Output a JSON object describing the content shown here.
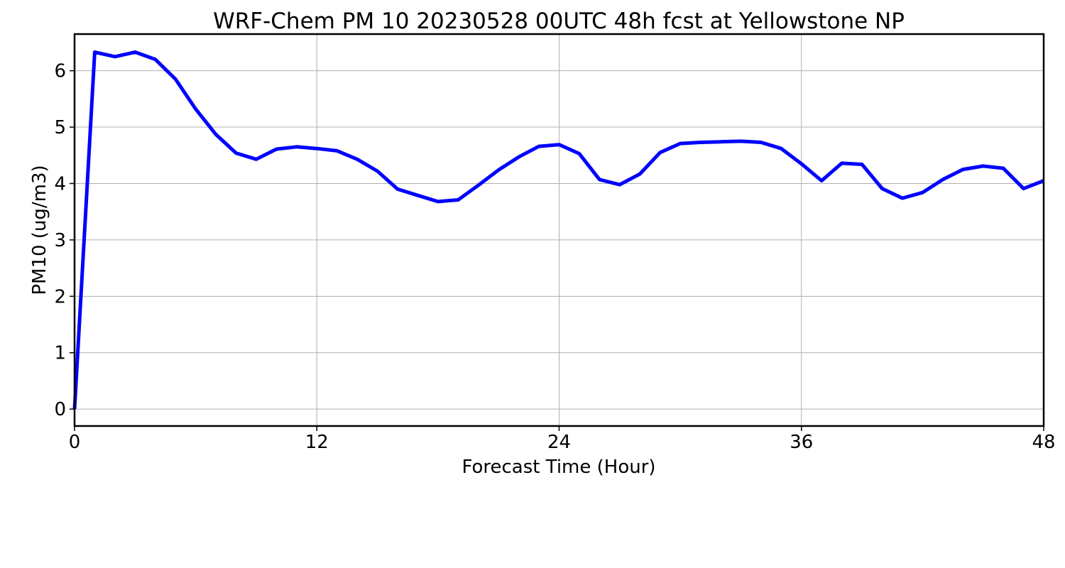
{
  "chart_data": {
    "type": "line",
    "title": "WRF-Chem PM 10  20230528 00UTC 48h fcst at Yellowstone NP",
    "xlabel": "Forecast Time (Hour)",
    "ylabel": "PM10  (ug/m3)",
    "xlim": [
      0,
      48
    ],
    "ylim": [
      -0.3,
      6.65
    ],
    "xticks": [
      0,
      12,
      24,
      36,
      48
    ],
    "yticks": [
      0,
      1,
      2,
      3,
      4,
      5,
      6
    ],
    "grid": true,
    "series": [
      {
        "color": "#0000ff",
        "x": [
          0,
          1,
          2,
          3,
          4,
          5,
          6,
          7,
          8,
          9,
          10,
          11,
          12,
          13,
          14,
          15,
          16,
          17,
          18,
          19,
          20,
          21,
          22,
          23,
          24,
          25,
          26,
          27,
          28,
          29,
          30,
          31,
          32,
          33,
          34,
          35,
          36,
          37,
          38,
          39,
          40,
          41,
          42,
          43,
          44,
          45,
          46,
          47,
          48
        ],
        "y": [
          0.0,
          6.33,
          6.25,
          6.33,
          6.2,
          5.85,
          5.32,
          4.87,
          4.54,
          4.43,
          4.61,
          4.65,
          4.62,
          4.58,
          4.43,
          4.22,
          3.9,
          3.79,
          3.68,
          3.71,
          3.97,
          4.24,
          4.47,
          4.66,
          4.69,
          4.53,
          4.07,
          3.98,
          4.17,
          4.55,
          4.71,
          4.73,
          4.74,
          4.75,
          4.73,
          4.62,
          4.35,
          4.05,
          4.36,
          4.34,
          3.91,
          3.74,
          3.84,
          4.07,
          4.25,
          4.31,
          4.27,
          3.91,
          4.05
        ]
      }
    ]
  }
}
